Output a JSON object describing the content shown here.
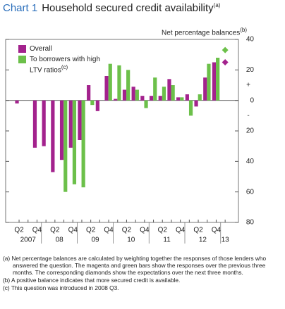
{
  "chart_data": {
    "type": "bar",
    "title_label": "Chart 1",
    "title": "Household secured credit availability",
    "title_note": "(a)",
    "y_axis_label": "Net percentage balances",
    "y_axis_note": "(b)",
    "categories": [
      "Q2",
      null,
      "Q4",
      null,
      "Q2",
      null,
      "Q4",
      null,
      "Q2",
      null,
      "Q4",
      null,
      "Q2",
      null,
      "Q4",
      null,
      "Q2",
      null,
      "Q4",
      null,
      "Q2",
      null,
      "Q4",
      null
    ],
    "years": [
      "2007",
      "08",
      "09",
      "10",
      "11",
      "12",
      "13"
    ],
    "series": [
      {
        "name": "Overall",
        "color": "#a3228d",
        "values": [
          -2,
          0,
          -31,
          -30,
          -47,
          -39,
          -31,
          -26,
          10,
          -7,
          16,
          1,
          7,
          9,
          3,
          3,
          3,
          14,
          2,
          4,
          -4,
          15,
          25,
          null
        ],
        "expectation": 25
      },
      {
        "name": "To borrowers with high LTV ratios",
        "note": "(c)",
        "color": "#6cc04a",
        "values": [
          null,
          null,
          null,
          null,
          null,
          -60,
          -55,
          -57,
          -3,
          0,
          24,
          23,
          20,
          7,
          -5,
          15,
          9,
          10,
          2,
          -10,
          4,
          24,
          28,
          null
        ],
        "expectation": 33
      }
    ],
    "ylim": [
      -80,
      40
    ],
    "yticks": [
      40,
      20,
      0,
      {
        "value": -20,
        "label": "20"
      },
      {
        "value": -40,
        "label": "40"
      },
      {
        "value": -60,
        "label": "60"
      },
      {
        "value": -80,
        "label": "80"
      }
    ],
    "sign_labels": [
      "+",
      "-"
    ],
    "footnotes": [
      "(a) Net percentage balances are calculated by weighting together the responses of those lenders who answered the question. The magenta and green bars show the responses over the previous three months. The corresponding diamonds show the expectations over the next three months.",
      "(b) A positive balance indicates that more secured credit is available.",
      "(c) This question was introduced in 2008 Q3."
    ]
  }
}
